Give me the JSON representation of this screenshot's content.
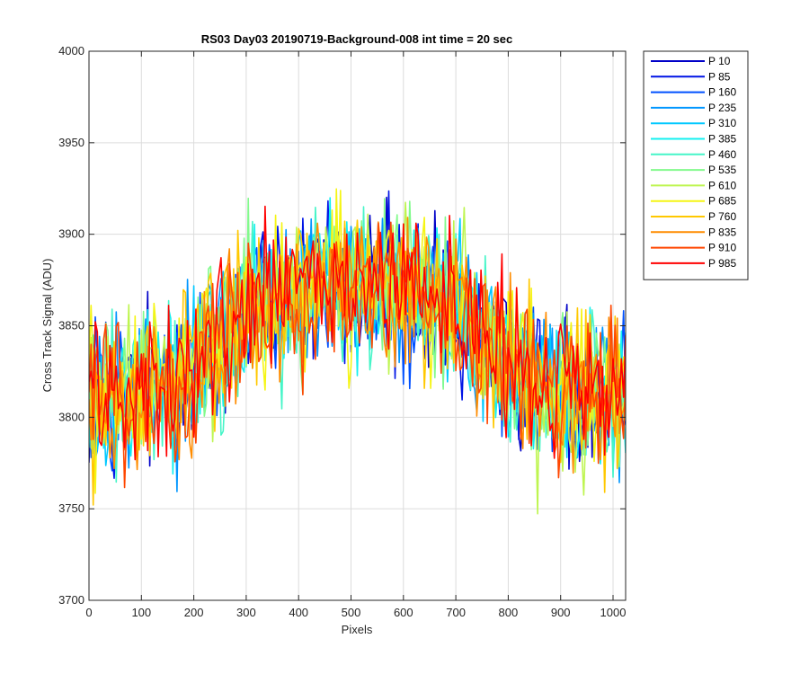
{
  "chart_data": {
    "type": "line",
    "title": "RS03 Day03 20190719-Background-008 int time = 20 sec",
    "xlabel": "Pixels",
    "ylabel": "Cross Track Signal (ADU)",
    "xlim": [
      0,
      1024
    ],
    "ylim": [
      3700,
      4000
    ],
    "xticks": [
      0,
      100,
      200,
      300,
      400,
      500,
      600,
      700,
      800,
      900,
      1000
    ],
    "yticks": [
      3700,
      3750,
      3800,
      3850,
      3900,
      3950,
      4000
    ],
    "grid": true,
    "legend_position": "outside-right",
    "approximate_profile": {
      "x": [
        0,
        100,
        200,
        250,
        300,
        400,
        500,
        600,
        700,
        750,
        800,
        900,
        1000,
        1024
      ],
      "mean": [
        3812,
        3812,
        3825,
        3840,
        3860,
        3870,
        3872,
        3870,
        3862,
        3845,
        3828,
        3815,
        3812,
        3812
      ],
      "noise_peak_to_peak": 120
    },
    "series": [
      {
        "name": "P 10",
        "color": "#0000c8"
      },
      {
        "name": "P 85",
        "color": "#0014e6"
      },
      {
        "name": "P 160",
        "color": "#0050ff"
      },
      {
        "name": "P 235",
        "color": "#0096ff"
      },
      {
        "name": "P 310",
        "color": "#00c8ff"
      },
      {
        "name": "P 385",
        "color": "#14f0f0"
      },
      {
        "name": "P 460",
        "color": "#46f5c8"
      },
      {
        "name": "P 535",
        "color": "#82fa8c"
      },
      {
        "name": "P 610",
        "color": "#bef550"
      },
      {
        "name": "P 685",
        "color": "#f5f514"
      },
      {
        "name": "P 760",
        "color": "#ffc800"
      },
      {
        "name": "P 835",
        "color": "#ff8c00"
      },
      {
        "name": "P 910",
        "color": "#ff4600"
      },
      {
        "name": "P 985",
        "color": "#ff0000"
      }
    ]
  }
}
